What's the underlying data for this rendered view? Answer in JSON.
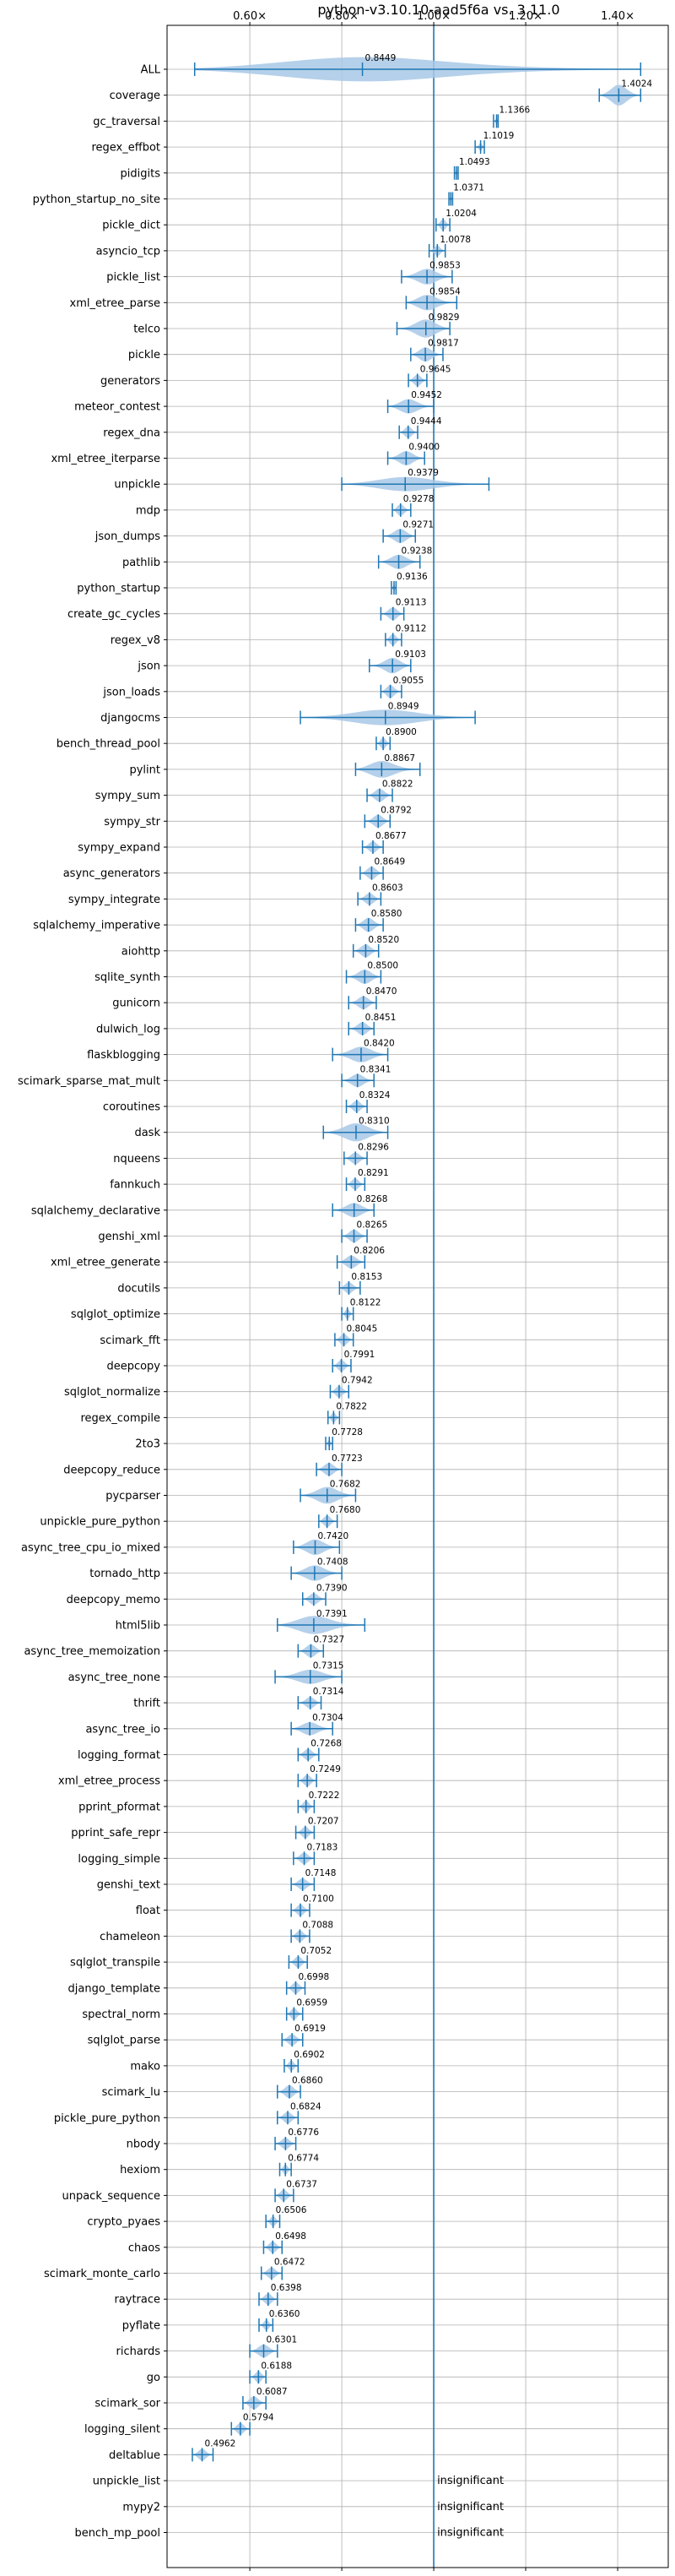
{
  "chart_data": {
    "type": "violin",
    "title": "python-v3.10.10-aad5f6a vs. 3.11.0",
    "x_tick_labels": [
      "0.60×",
      "0.80×",
      "1.00×",
      "1.20×",
      "1.40×"
    ],
    "x_ticks": [
      0.6,
      0.8,
      1.0,
      1.2,
      1.4
    ],
    "xlim": [
      0.42,
      1.51
    ],
    "reference_line": 1.0,
    "grid": true,
    "benchmarks": [
      {
        "name": "ALL",
        "value": 0.8449,
        "label": "0.8449",
        "lo": 0.48,
        "hi": 1.45,
        "spread": 0.95
      },
      {
        "name": "coverage",
        "value": 1.4024,
        "label": "1.4024",
        "lo": 1.36,
        "hi": 1.45,
        "spread": 0.8
      },
      {
        "name": "gc_traversal",
        "value": 1.1366,
        "label": "1.1366",
        "lo": 1.13,
        "hi": 1.14,
        "spread": 0.25
      },
      {
        "name": "regex_effbot",
        "value": 1.1019,
        "label": "1.1019",
        "lo": 1.09,
        "hi": 1.11,
        "spread": 0.3
      },
      {
        "name": "pidigits",
        "value": 1.0493,
        "label": "1.0493",
        "lo": 1.045,
        "hi": 1.053,
        "spread": 0.25
      },
      {
        "name": "python_startup_no_site",
        "value": 1.0371,
        "label": "1.0371",
        "lo": 1.033,
        "hi": 1.041,
        "spread": 0.25
      },
      {
        "name": "pickle_dict",
        "value": 1.0204,
        "label": "1.0204",
        "lo": 1.005,
        "hi": 1.035,
        "spread": 0.45
      },
      {
        "name": "asyncio_tcp",
        "value": 1.0078,
        "label": "1.0078",
        "lo": 0.99,
        "hi": 1.025,
        "spread": 0.4
      },
      {
        "name": "pickle_list",
        "value": 0.9853,
        "label": "0.9853",
        "lo": 0.93,
        "hi": 1.04,
        "spread": 0.6
      },
      {
        "name": "xml_etree_parse",
        "value": 0.9854,
        "label": "0.9854",
        "lo": 0.94,
        "hi": 1.05,
        "spread": 0.6
      },
      {
        "name": "telco",
        "value": 0.9829,
        "label": "0.9829",
        "lo": 0.92,
        "hi": 1.035,
        "spread": 0.7
      },
      {
        "name": "pickle",
        "value": 0.9817,
        "label": "0.9817",
        "lo": 0.95,
        "hi": 1.02,
        "spread": 0.55
      },
      {
        "name": "generators",
        "value": 0.9645,
        "label": "0.9645",
        "lo": 0.945,
        "hi": 0.985,
        "spread": 0.45
      },
      {
        "name": "meteor_contest",
        "value": 0.9452,
        "label": "0.9452",
        "lo": 0.9,
        "hi": 1.0,
        "spread": 0.55
      },
      {
        "name": "regex_dna",
        "value": 0.9444,
        "label": "0.9444",
        "lo": 0.925,
        "hi": 0.965,
        "spread": 0.45
      },
      {
        "name": "xml_etree_iterparse",
        "value": 0.94,
        "label": "0.9400",
        "lo": 0.9,
        "hi": 0.98,
        "spread": 0.55
      },
      {
        "name": "unpickle",
        "value": 0.9379,
        "label": "0.9379",
        "lo": 0.8,
        "hi": 1.12,
        "spread": 0.55
      },
      {
        "name": "mdp",
        "value": 0.9278,
        "label": "0.9278",
        "lo": 0.91,
        "hi": 0.95,
        "spread": 0.45
      },
      {
        "name": "json_dumps",
        "value": 0.9271,
        "label": "0.9271",
        "lo": 0.89,
        "hi": 0.96,
        "spread": 0.55
      },
      {
        "name": "pathlib",
        "value": 0.9238,
        "label": "0.9238",
        "lo": 0.88,
        "hi": 0.97,
        "spread": 0.55
      },
      {
        "name": "python_startup",
        "value": 0.9136,
        "label": "0.9136",
        "lo": 0.908,
        "hi": 0.918,
        "spread": 0.3
      },
      {
        "name": "create_gc_cycles",
        "value": 0.9113,
        "label": "0.9113",
        "lo": 0.885,
        "hi": 0.935,
        "spread": 0.5
      },
      {
        "name": "regex_v8",
        "value": 0.9112,
        "label": "0.9112",
        "lo": 0.895,
        "hi": 0.93,
        "spread": 0.45
      },
      {
        "name": "json",
        "value": 0.9103,
        "label": "0.9103",
        "lo": 0.86,
        "hi": 0.95,
        "spread": 0.6
      },
      {
        "name": "json_loads",
        "value": 0.9055,
        "label": "0.9055",
        "lo": 0.885,
        "hi": 0.93,
        "spread": 0.5
      },
      {
        "name": "djangocms",
        "value": 0.8949,
        "label": "0.8949",
        "lo": 0.71,
        "hi": 1.09,
        "spread": 0.6
      },
      {
        "name": "bench_thread_pool",
        "value": 0.89,
        "label": "0.8900",
        "lo": 0.875,
        "hi": 0.905,
        "spread": 0.45
      },
      {
        "name": "pylint",
        "value": 0.8867,
        "label": "0.8867",
        "lo": 0.83,
        "hi": 0.97,
        "spread": 0.65
      },
      {
        "name": "sympy_sum",
        "value": 0.8822,
        "label": "0.8822",
        "lo": 0.855,
        "hi": 0.91,
        "spread": 0.5
      },
      {
        "name": "sympy_str",
        "value": 0.8792,
        "label": "0.8792",
        "lo": 0.85,
        "hi": 0.905,
        "spread": 0.5
      },
      {
        "name": "sympy_expand",
        "value": 0.8677,
        "label": "0.8677",
        "lo": 0.845,
        "hi": 0.89,
        "spread": 0.45
      },
      {
        "name": "async_generators",
        "value": 0.8649,
        "label": "0.8649",
        "lo": 0.84,
        "hi": 0.89,
        "spread": 0.5
      },
      {
        "name": "sympy_integrate",
        "value": 0.8603,
        "label": "0.8603",
        "lo": 0.835,
        "hi": 0.885,
        "spread": 0.45
      },
      {
        "name": "sqlalchemy_imperative",
        "value": 0.858,
        "label": "0.8580",
        "lo": 0.83,
        "hi": 0.89,
        "spread": 0.55
      },
      {
        "name": "aiohttp",
        "value": 0.852,
        "label": "0.8520",
        "lo": 0.825,
        "hi": 0.88,
        "spread": 0.5
      },
      {
        "name": "sqlite_synth",
        "value": 0.85,
        "label": "0.8500",
        "lo": 0.81,
        "hi": 0.885,
        "spread": 0.55
      },
      {
        "name": "gunicorn",
        "value": 0.847,
        "label": "0.8470",
        "lo": 0.815,
        "hi": 0.875,
        "spread": 0.5
      },
      {
        "name": "dulwich_log",
        "value": 0.8451,
        "label": "0.8451",
        "lo": 0.815,
        "hi": 0.87,
        "spread": 0.5
      },
      {
        "name": "flaskblogging",
        "value": 0.842,
        "label": "0.8420",
        "lo": 0.78,
        "hi": 0.9,
        "spread": 0.6
      },
      {
        "name": "scimark_sparse_mat_mult",
        "value": 0.8341,
        "label": "0.8341",
        "lo": 0.8,
        "hi": 0.87,
        "spread": 0.5
      },
      {
        "name": "coroutines",
        "value": 0.8324,
        "label": "0.8324",
        "lo": 0.81,
        "hi": 0.855,
        "spread": 0.45
      },
      {
        "name": "dask",
        "value": 0.831,
        "label": "0.8310",
        "lo": 0.76,
        "hi": 0.9,
        "spread": 0.7
      },
      {
        "name": "nqueens",
        "value": 0.8296,
        "label": "0.8296",
        "lo": 0.805,
        "hi": 0.855,
        "spread": 0.45
      },
      {
        "name": "fannkuch",
        "value": 0.8291,
        "label": "0.8291",
        "lo": 0.81,
        "hi": 0.85,
        "spread": 0.45
      },
      {
        "name": "sqlalchemy_declarative",
        "value": 0.8268,
        "label": "0.8268",
        "lo": 0.78,
        "hi": 0.87,
        "spread": 0.55
      },
      {
        "name": "genshi_xml",
        "value": 0.8265,
        "label": "0.8265",
        "lo": 0.8,
        "hi": 0.855,
        "spread": 0.5
      },
      {
        "name": "xml_etree_generate",
        "value": 0.8206,
        "label": "0.8206",
        "lo": 0.79,
        "hi": 0.85,
        "spread": 0.5
      },
      {
        "name": "docutils",
        "value": 0.8153,
        "label": "0.8153",
        "lo": 0.795,
        "hi": 0.84,
        "spread": 0.45
      },
      {
        "name": "sqlglot_optimize",
        "value": 0.8122,
        "label": "0.8122",
        "lo": 0.8,
        "hi": 0.825,
        "spread": 0.4
      },
      {
        "name": "scimark_fft",
        "value": 0.8045,
        "label": "0.8045",
        "lo": 0.785,
        "hi": 0.825,
        "spread": 0.45
      },
      {
        "name": "deepcopy",
        "value": 0.7991,
        "label": "0.7991",
        "lo": 0.78,
        "hi": 0.82,
        "spread": 0.45
      },
      {
        "name": "sqlglot_normalize",
        "value": 0.7942,
        "label": "0.7942",
        "lo": 0.775,
        "hi": 0.815,
        "spread": 0.45
      },
      {
        "name": "regex_compile",
        "value": 0.7822,
        "label": "0.7822",
        "lo": 0.77,
        "hi": 0.795,
        "spread": 0.4
      },
      {
        "name": "2to3",
        "value": 0.7728,
        "label": "0.7728",
        "lo": 0.765,
        "hi": 0.78,
        "spread": 0.3
      },
      {
        "name": "deepcopy_reduce",
        "value": 0.7723,
        "label": "0.7723",
        "lo": 0.745,
        "hi": 0.8,
        "spread": 0.5
      },
      {
        "name": "pycparser",
        "value": 0.7682,
        "label": "0.7682",
        "lo": 0.71,
        "hi": 0.83,
        "spread": 0.65
      },
      {
        "name": "unpickle_pure_python",
        "value": 0.768,
        "label": "0.7680",
        "lo": 0.75,
        "hi": 0.79,
        "spread": 0.45
      },
      {
        "name": "async_tree_cpu_io_mixed",
        "value": 0.742,
        "label": "0.7420",
        "lo": 0.695,
        "hi": 0.795,
        "spread": 0.6
      },
      {
        "name": "tornado_http",
        "value": 0.7408,
        "label": "0.7408",
        "lo": 0.69,
        "hi": 0.8,
        "spread": 0.6
      },
      {
        "name": "deepcopy_memo",
        "value": 0.739,
        "label": "0.7390",
        "lo": 0.715,
        "hi": 0.765,
        "spread": 0.45
      },
      {
        "name": "html5lib",
        "value": 0.7391,
        "label": "0.7391",
        "lo": 0.66,
        "hi": 0.85,
        "spread": 0.7
      },
      {
        "name": "async_tree_memoization",
        "value": 0.7327,
        "label": "0.7327",
        "lo": 0.705,
        "hi": 0.76,
        "spread": 0.5
      },
      {
        "name": "async_tree_none",
        "value": 0.7315,
        "label": "0.7315",
        "lo": 0.655,
        "hi": 0.8,
        "spread": 0.55
      },
      {
        "name": "thrift",
        "value": 0.7314,
        "label": "0.7314",
        "lo": 0.705,
        "hi": 0.755,
        "spread": 0.45
      },
      {
        "name": "async_tree_io",
        "value": 0.7304,
        "label": "0.7304",
        "lo": 0.69,
        "hi": 0.78,
        "spread": 0.5
      },
      {
        "name": "logging_format",
        "value": 0.7268,
        "label": "0.7268",
        "lo": 0.705,
        "hi": 0.75,
        "spread": 0.45
      },
      {
        "name": "xml_etree_process",
        "value": 0.7249,
        "label": "0.7249",
        "lo": 0.705,
        "hi": 0.745,
        "spread": 0.45
      },
      {
        "name": "pprint_pformat",
        "value": 0.7222,
        "label": "0.7222",
        "lo": 0.705,
        "hi": 0.74,
        "spread": 0.45
      },
      {
        "name": "pprint_safe_repr",
        "value": 0.7207,
        "label": "0.7207",
        "lo": 0.7,
        "hi": 0.74,
        "spread": 0.45
      },
      {
        "name": "logging_simple",
        "value": 0.7183,
        "label": "0.7183",
        "lo": 0.695,
        "hi": 0.74,
        "spread": 0.45
      },
      {
        "name": "genshi_text",
        "value": 0.7148,
        "label": "0.7148",
        "lo": 0.69,
        "hi": 0.74,
        "spread": 0.45
      },
      {
        "name": "float",
        "value": 0.71,
        "label": "0.7100",
        "lo": 0.69,
        "hi": 0.73,
        "spread": 0.45
      },
      {
        "name": "chameleon",
        "value": 0.7088,
        "label": "0.7088",
        "lo": 0.69,
        "hi": 0.73,
        "spread": 0.45
      },
      {
        "name": "sqlglot_transpile",
        "value": 0.7052,
        "label": "0.7052",
        "lo": 0.685,
        "hi": 0.725,
        "spread": 0.45
      },
      {
        "name": "django_template",
        "value": 0.6998,
        "label": "0.6998",
        "lo": 0.68,
        "hi": 0.72,
        "spread": 0.45
      },
      {
        "name": "spectral_norm",
        "value": 0.6959,
        "label": "0.6959",
        "lo": 0.68,
        "hi": 0.715,
        "spread": 0.45
      },
      {
        "name": "sqlglot_parse",
        "value": 0.6919,
        "label": "0.6919",
        "lo": 0.67,
        "hi": 0.715,
        "spread": 0.45
      },
      {
        "name": "mako",
        "value": 0.6902,
        "label": "0.6902",
        "lo": 0.675,
        "hi": 0.705,
        "spread": 0.4
      },
      {
        "name": "scimark_lu",
        "value": 0.686,
        "label": "0.6860",
        "lo": 0.66,
        "hi": 0.71,
        "spread": 0.5
      },
      {
        "name": "pickle_pure_python",
        "value": 0.6824,
        "label": "0.6824",
        "lo": 0.66,
        "hi": 0.705,
        "spread": 0.45
      },
      {
        "name": "nbody",
        "value": 0.6776,
        "label": "0.6776",
        "lo": 0.655,
        "hi": 0.7,
        "spread": 0.45
      },
      {
        "name": "hexiom",
        "value": 0.6774,
        "label": "0.6774",
        "lo": 0.665,
        "hi": 0.69,
        "spread": 0.4
      },
      {
        "name": "unpack_sequence",
        "value": 0.6737,
        "label": "0.6737",
        "lo": 0.655,
        "hi": 0.695,
        "spread": 0.45
      },
      {
        "name": "crypto_pyaes",
        "value": 0.6506,
        "label": "0.6506",
        "lo": 0.635,
        "hi": 0.665,
        "spread": 0.4
      },
      {
        "name": "chaos",
        "value": 0.6498,
        "label": "0.6498",
        "lo": 0.63,
        "hi": 0.67,
        "spread": 0.45
      },
      {
        "name": "scimark_monte_carlo",
        "value": 0.6472,
        "label": "0.6472",
        "lo": 0.625,
        "hi": 0.67,
        "spread": 0.45
      },
      {
        "name": "raytrace",
        "value": 0.6398,
        "label": "0.6398",
        "lo": 0.62,
        "hi": 0.66,
        "spread": 0.45
      },
      {
        "name": "pyflate",
        "value": 0.636,
        "label": "0.6360",
        "lo": 0.62,
        "hi": 0.65,
        "spread": 0.4
      },
      {
        "name": "richards",
        "value": 0.6301,
        "label": "0.6301",
        "lo": 0.6,
        "hi": 0.66,
        "spread": 0.5
      },
      {
        "name": "go",
        "value": 0.6188,
        "label": "0.6188",
        "lo": 0.6,
        "hi": 0.635,
        "spread": 0.45
      },
      {
        "name": "scimark_sor",
        "value": 0.6087,
        "label": "0.6087",
        "lo": 0.585,
        "hi": 0.635,
        "spread": 0.5
      },
      {
        "name": "logging_silent",
        "value": 0.5794,
        "label": "0.5794",
        "lo": 0.56,
        "hi": 0.6,
        "spread": 0.45
      },
      {
        "name": "deltablue",
        "value": 0.4962,
        "label": "0.4962",
        "lo": 0.475,
        "hi": 0.52,
        "spread": 0.45
      },
      {
        "name": "unpickle_list",
        "value": null,
        "label": "insignificant"
      },
      {
        "name": "mypy2",
        "value": null,
        "label": "insignificant"
      },
      {
        "name": "bench_mp_pool",
        "value": null,
        "label": "insignificant"
      }
    ]
  },
  "colors": {
    "violin_fill": "#a8c8e6",
    "marker": "#1f77b4",
    "reference_line": "#1f77b4",
    "grid": "#b0b0b0",
    "axis": "#000000"
  }
}
